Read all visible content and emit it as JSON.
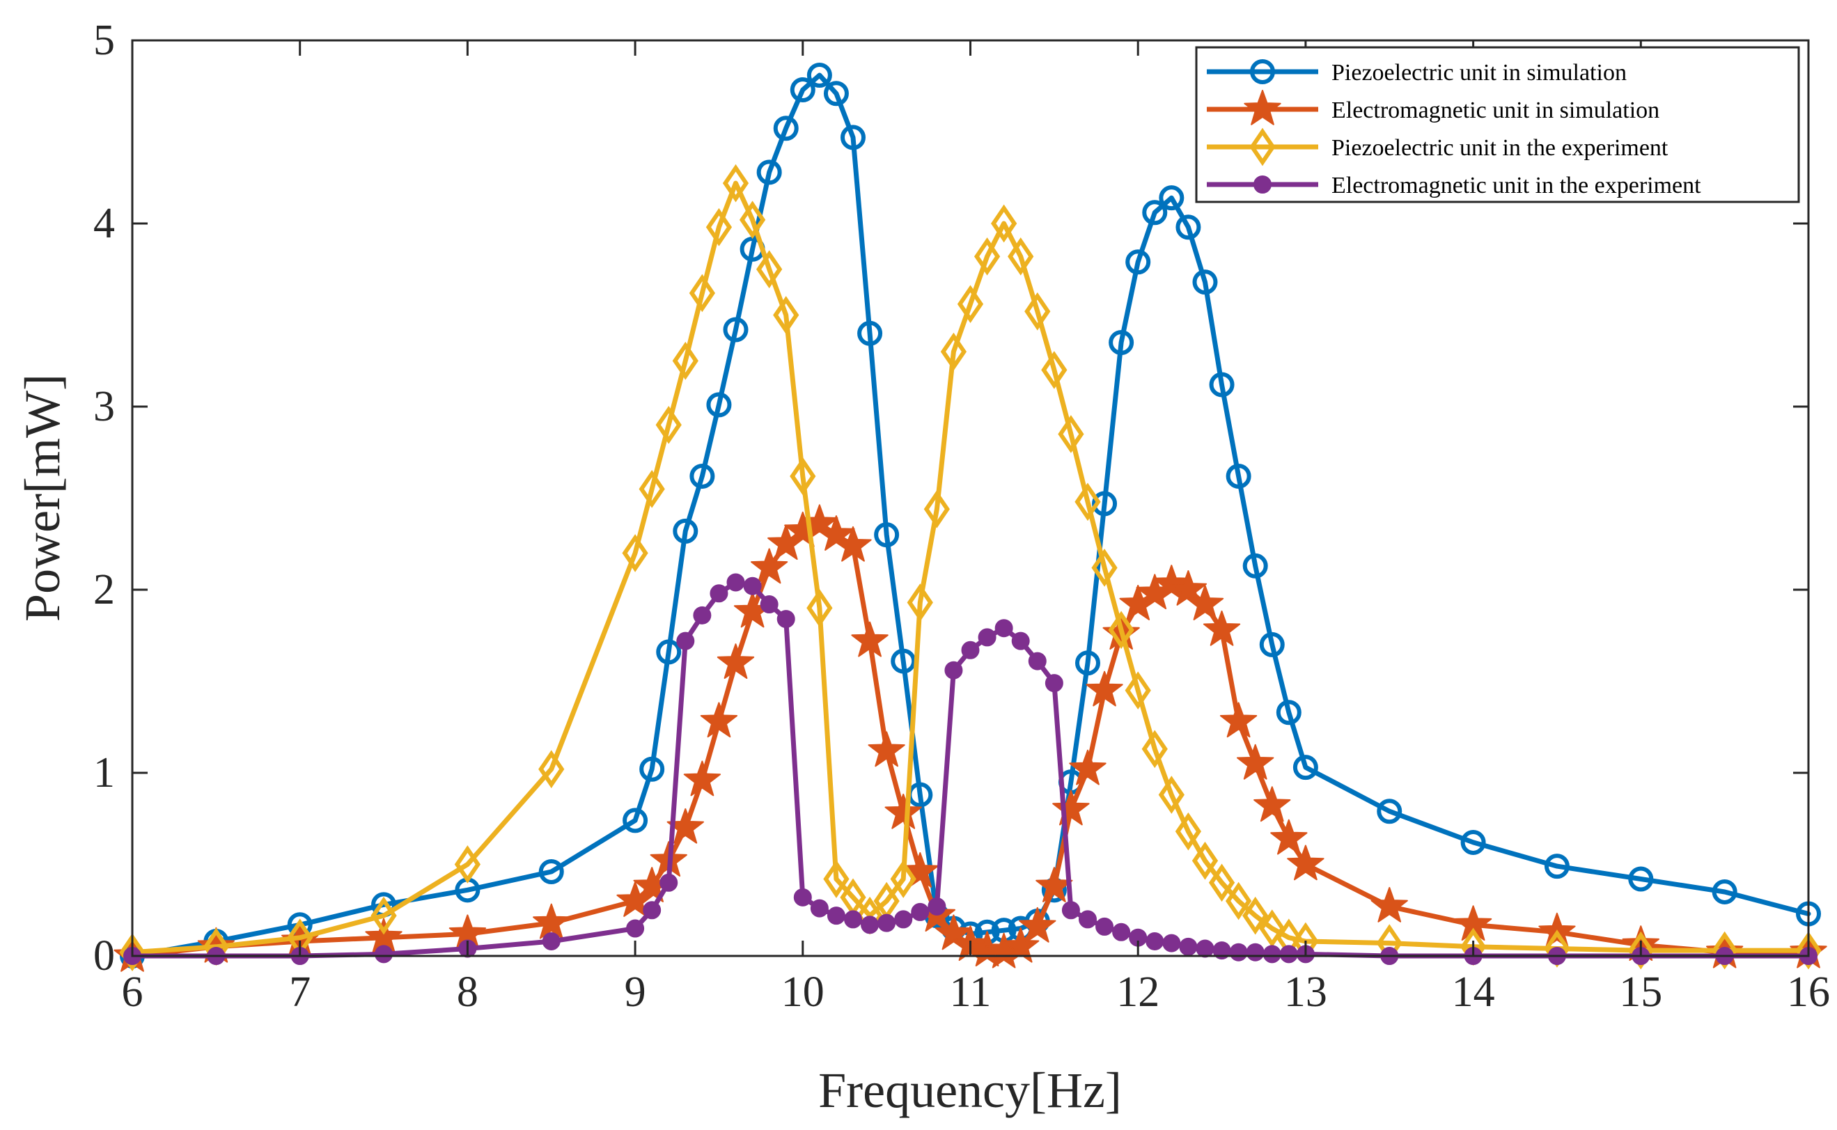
{
  "chart_data": {
    "type": "line",
    "title": "",
    "xlabel": "Frequency[Hz]",
    "ylabel": "Power[mW]",
    "xlim": [
      6,
      16
    ],
    "ylim": [
      0,
      5
    ],
    "xticks": [
      "6",
      "7",
      "8",
      "9",
      "10",
      "11",
      "12",
      "13",
      "14",
      "15",
      "16"
    ],
    "yticks": [
      "0",
      "1",
      "2",
      "3",
      "4",
      "5"
    ],
    "grid": false,
    "legend_position": "top-right",
    "series": [
      {
        "name": "Piezoelectric unit in simulation",
        "color": "#0072BD",
        "marker": "circle-open",
        "x": [
          6,
          6.5,
          7,
          7.5,
          8,
          8.5,
          9,
          9.1,
          9.2,
          9.3,
          9.4,
          9.5,
          9.6,
          9.7,
          9.8,
          9.9,
          10,
          10.1,
          10.2,
          10.3,
          10.4,
          10.5,
          10.6,
          10.7,
          10.8,
          10.9,
          11,
          11.1,
          11.2,
          11.3,
          11.4,
          11.5,
          11.6,
          11.7,
          11.8,
          11.9,
          12,
          12.1,
          12.2,
          12.3,
          12.4,
          12.5,
          12.6,
          12.7,
          12.8,
          12.9,
          13,
          13.5,
          14,
          14.5,
          15,
          15.5,
          16
        ],
        "y": [
          0,
          0.08,
          0.17,
          0.28,
          0.36,
          0.46,
          0.74,
          1.02,
          1.66,
          2.32,
          2.62,
          3.01,
          3.42,
          3.86,
          4.28,
          4.52,
          4.73,
          4.81,
          4.71,
          4.47,
          3.4,
          2.3,
          1.61,
          0.88,
          0.22,
          0.15,
          0.12,
          0.13,
          0.14,
          0.15,
          0.19,
          0.36,
          0.95,
          1.6,
          2.47,
          3.35,
          3.79,
          4.06,
          4.14,
          3.98,
          3.68,
          3.12,
          2.62,
          2.13,
          1.7,
          1.33,
          1.03,
          0.79,
          0.62,
          0.49,
          0.42,
          0.35,
          0.23
        ]
      },
      {
        "name": "Electromagnetic unit in simulation",
        "color": "#D95319",
        "marker": "star",
        "x": [
          6,
          6.5,
          7,
          7.5,
          8,
          8.5,
          9,
          9.1,
          9.2,
          9.3,
          9.4,
          9.5,
          9.6,
          9.7,
          9.8,
          9.9,
          10,
          10.1,
          10.2,
          10.3,
          10.4,
          10.5,
          10.6,
          10.7,
          10.8,
          10.9,
          11,
          11.1,
          11.2,
          11.3,
          11.4,
          11.5,
          11.6,
          11.7,
          11.8,
          11.9,
          12,
          12.1,
          12.2,
          12.3,
          12.4,
          12.5,
          12.6,
          12.7,
          12.8,
          12.9,
          13,
          13.5,
          14,
          14.5,
          15,
          15.5,
          16
        ],
        "y": [
          0,
          0.05,
          0.08,
          0.1,
          0.12,
          0.18,
          0.3,
          0.38,
          0.52,
          0.7,
          0.96,
          1.28,
          1.6,
          1.88,
          2.12,
          2.25,
          2.32,
          2.36,
          2.3,
          2.24,
          1.72,
          1.12,
          0.78,
          0.46,
          0.22,
          0.12,
          0.06,
          0.03,
          0.02,
          0.05,
          0.16,
          0.38,
          0.8,
          1.02,
          1.45,
          1.76,
          1.92,
          1.98,
          2.03,
          2.0,
          1.92,
          1.78,
          1.28,
          1.05,
          0.82,
          0.64,
          0.5,
          0.27,
          0.17,
          0.13,
          0.06,
          0.02,
          0.02
        ]
      },
      {
        "name": "Piezoelectric unit in the experiment",
        "color": "#EDB120",
        "marker": "diamond-open",
        "x": [
          6,
          6.5,
          7,
          7.5,
          8,
          8.5,
          9,
          9.1,
          9.2,
          9.3,
          9.4,
          9.5,
          9.6,
          9.7,
          9.8,
          9.9,
          10,
          10.1,
          10.2,
          10.3,
          10.4,
          10.5,
          10.6,
          10.7,
          10.8,
          10.9,
          11,
          11.1,
          11.2,
          11.3,
          11.4,
          11.5,
          11.6,
          11.7,
          11.8,
          11.9,
          12,
          12.1,
          12.2,
          12.3,
          12.4,
          12.5,
          12.6,
          12.7,
          12.8,
          12.9,
          13,
          13.5,
          14,
          14.5,
          15,
          15.5,
          16
        ],
        "y": [
          0.02,
          0.05,
          0.1,
          0.22,
          0.5,
          1.02,
          2.2,
          2.55,
          2.9,
          3.25,
          3.62,
          3.98,
          4.22,
          4.02,
          3.75,
          3.5,
          2.62,
          1.9,
          0.42,
          0.32,
          0.22,
          0.3,
          0.42,
          1.93,
          2.44,
          3.3,
          3.56,
          3.82,
          4.0,
          3.82,
          3.52,
          3.2,
          2.85,
          2.48,
          2.12,
          1.78,
          1.45,
          1.13,
          0.88,
          0.68,
          0.52,
          0.4,
          0.3,
          0.22,
          0.15,
          0.1,
          0.08,
          0.07,
          0.05,
          0.04,
          0.03,
          0.03,
          0.03
        ]
      },
      {
        "name": "Electromagnetic unit in the experiment",
        "color": "#7E2F8E",
        "marker": "circle-filled",
        "x": [
          6,
          6.5,
          7,
          7.5,
          8,
          8.5,
          9,
          9.1,
          9.2,
          9.3,
          9.4,
          9.5,
          9.6,
          9.7,
          9.8,
          9.9,
          10,
          10.1,
          10.2,
          10.3,
          10.4,
          10.5,
          10.6,
          10.7,
          10.8,
          10.9,
          11,
          11.1,
          11.2,
          11.3,
          11.4,
          11.5,
          11.6,
          11.7,
          11.8,
          11.9,
          12,
          12.1,
          12.2,
          12.3,
          12.4,
          12.5,
          12.6,
          12.7,
          12.8,
          12.9,
          13,
          13.5,
          14,
          14.5,
          15,
          15.5,
          16
        ],
        "y": [
          0,
          0,
          0,
          0.01,
          0.04,
          0.08,
          0.15,
          0.25,
          0.4,
          1.72,
          1.86,
          1.98,
          2.04,
          2.02,
          1.92,
          1.84,
          0.32,
          0.26,
          0.22,
          0.2,
          0.17,
          0.18,
          0.2,
          0.24,
          0.27,
          1.56,
          1.67,
          1.74,
          1.79,
          1.72,
          1.61,
          1.49,
          0.25,
          0.2,
          0.16,
          0.13,
          0.1,
          0.08,
          0.07,
          0.05,
          0.04,
          0.03,
          0.02,
          0.02,
          0.01,
          0.01,
          0.01,
          0,
          0,
          0,
          0,
          0,
          0
        ]
      }
    ]
  }
}
